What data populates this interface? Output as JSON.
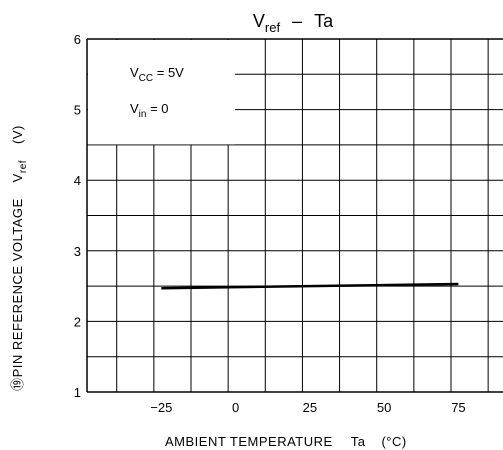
{
  "chart_data": {
    "type": "line",
    "title_main": "V",
    "title_sub": "ref",
    "title_sep": "–",
    "title_var": "Ta",
    "xlabel": "AMBIENT TEMPERATURE",
    "xlabel_symbol": "Ta",
    "xlabel_unit": "(°C)",
    "ylabel": "⑲PIN REFERENCE VOLTAGE",
    "ylabel_symbol_main": "V",
    "ylabel_symbol_sub": "ref",
    "ylabel_unit": "(V)",
    "xlim": [
      -50,
      90
    ],
    "ylim": [
      1,
      6
    ],
    "x_ticks": [
      -25,
      0,
      25,
      50,
      75
    ],
    "x_tick_labels": [
      "−25",
      "0",
      "25",
      "50",
      "75"
    ],
    "y_ticks": [
      1,
      2,
      3,
      4,
      5,
      6
    ],
    "y_tick_labels": [
      "1",
      "2",
      "3",
      "4",
      "5",
      "6"
    ],
    "grid": true,
    "conditions": [
      {
        "main": "V",
        "sub": "CC",
        "rest": " = 5V"
      },
      {
        "main": "V",
        "sub": "in",
        "rest": " = 0"
      }
    ],
    "series": [
      {
        "x": [
          -25,
          75
        ],
        "values": [
          2.47,
          2.53
        ]
      }
    ]
  }
}
